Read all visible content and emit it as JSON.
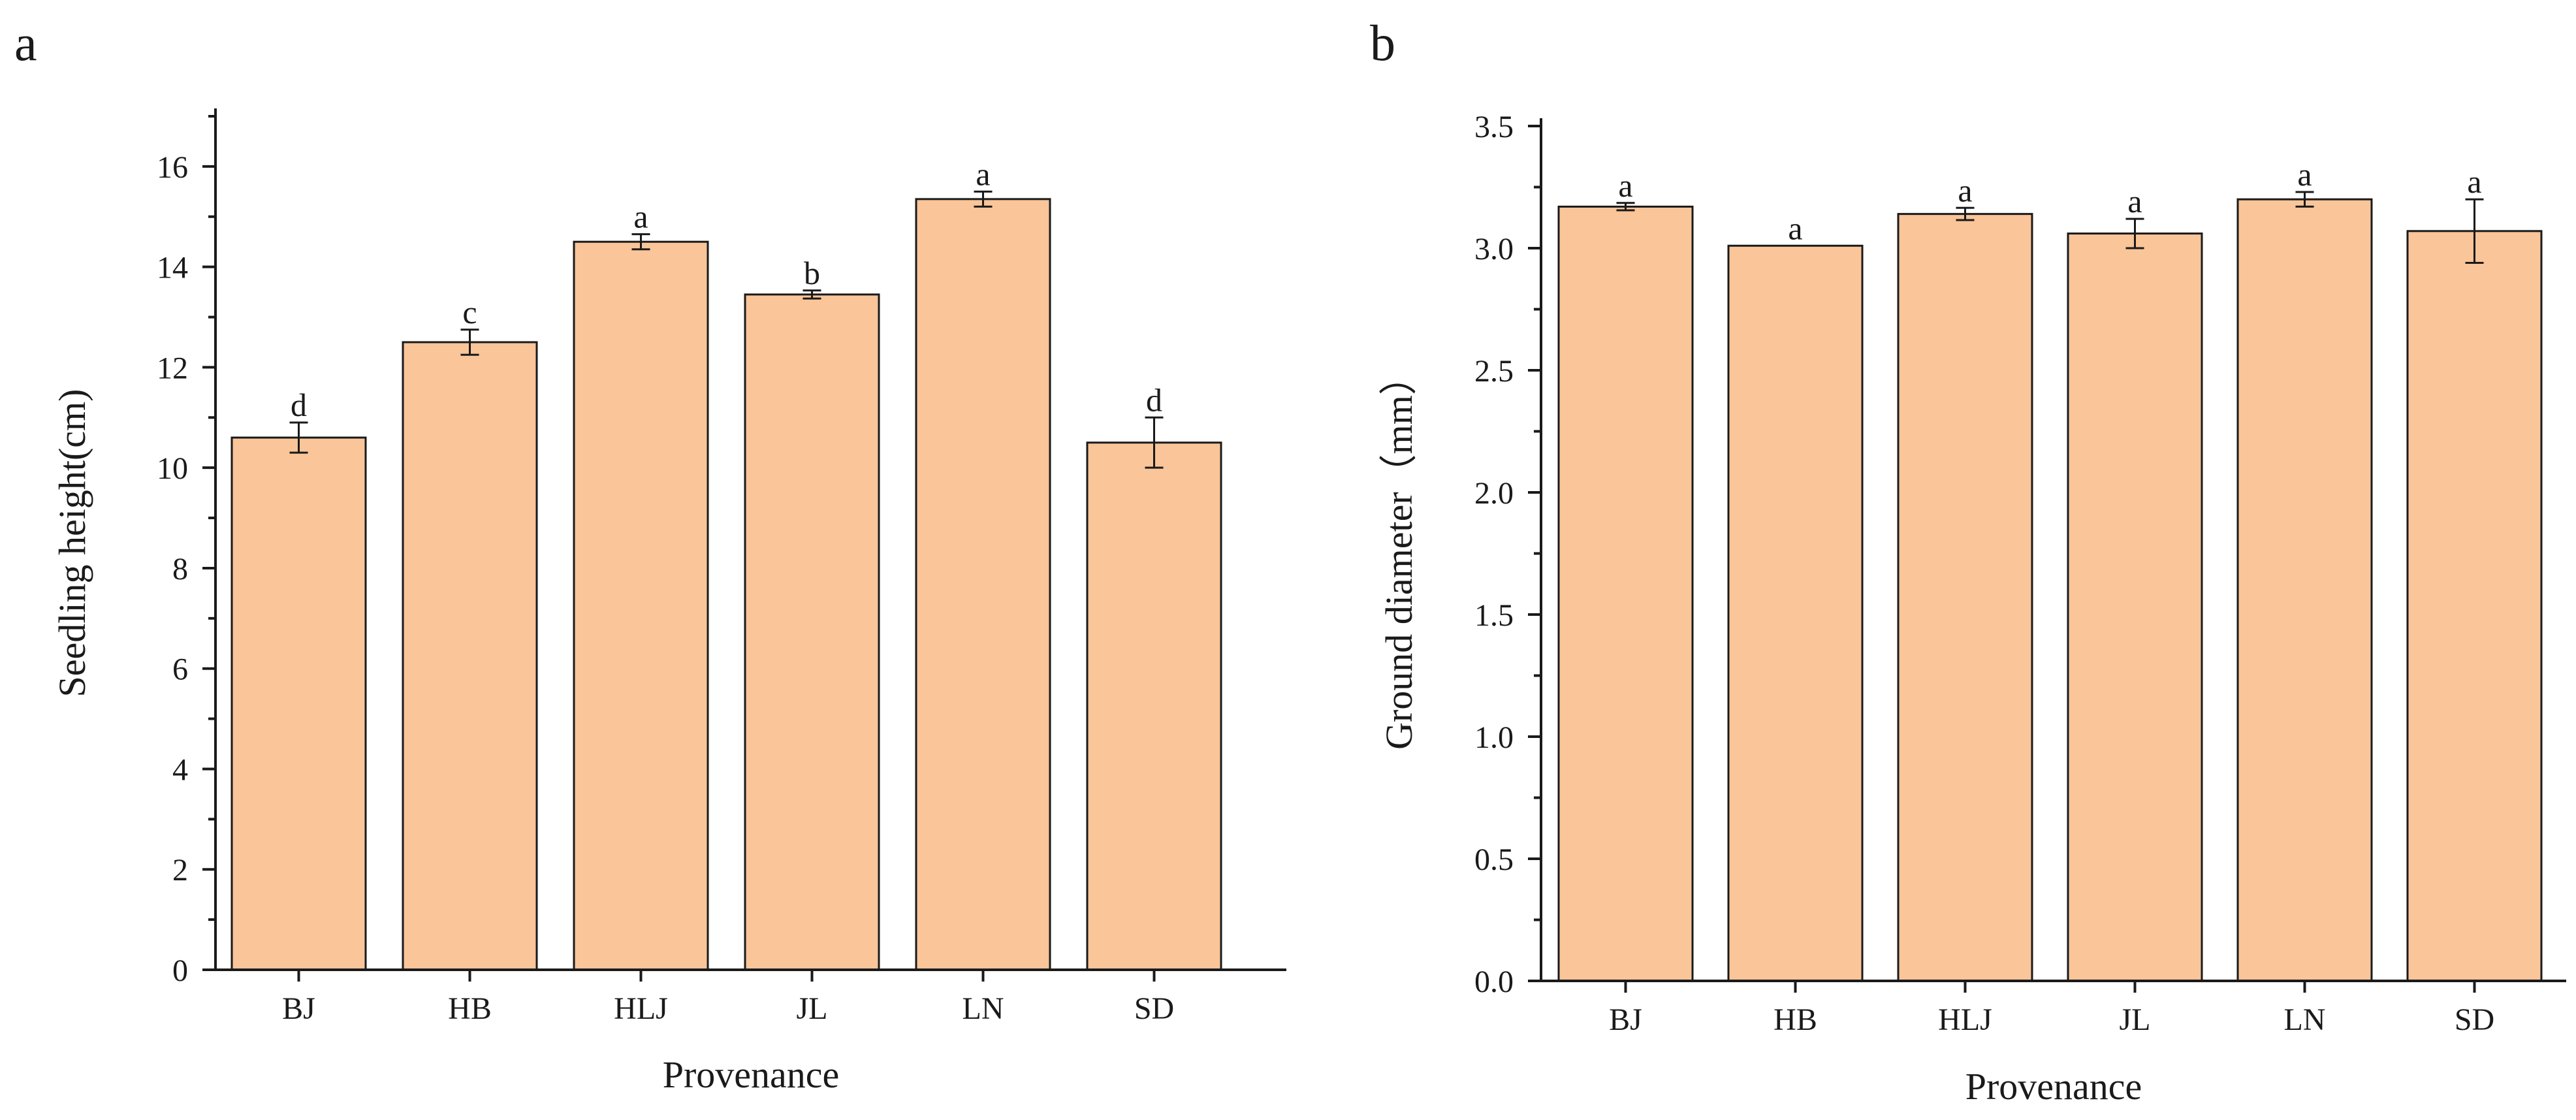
{
  "chart_data": [
    {
      "panel": "a",
      "type": "bar",
      "xlabel": "Provenance",
      "ylabel": "Seedling height(cm)",
      "ylim": [
        0,
        17
      ],
      "yticks": [
        0,
        2,
        4,
        6,
        8,
        10,
        12,
        14,
        16
      ],
      "tick_decimals": 0,
      "grid": false,
      "bar_color": "#f9c599",
      "categories": [
        "BJ",
        "HB",
        "HLJ",
        "JL",
        "LN",
        "SD"
      ],
      "values": [
        10.6,
        12.5,
        14.5,
        13.45,
        15.35,
        10.5
      ],
      "errors": [
        0.3,
        0.25,
        0.15,
        0.08,
        0.15,
        0.5
      ],
      "significance": [
        "d",
        "c",
        "a",
        "b",
        "a",
        "d"
      ]
    },
    {
      "panel": "b",
      "type": "bar",
      "xlabel": "Provenance",
      "ylabel": "Ground diameter（mm）",
      "ylim": [
        0,
        3.5
      ],
      "yticks": [
        0.0,
        0.5,
        1.0,
        1.5,
        2.0,
        2.5,
        3.0,
        3.5
      ],
      "tick_decimals": 1,
      "grid": false,
      "bar_color": "#f9c599",
      "categories": [
        "BJ",
        "HB",
        "HLJ",
        "JL",
        "LN",
        "SD"
      ],
      "values": [
        3.17,
        3.01,
        3.14,
        3.06,
        3.2,
        3.07
      ],
      "errors": [
        0.015,
        0.0,
        0.025,
        0.06,
        0.03,
        0.13
      ],
      "significance": [
        "a",
        "a",
        "a",
        "a",
        "a",
        "a"
      ]
    }
  ]
}
